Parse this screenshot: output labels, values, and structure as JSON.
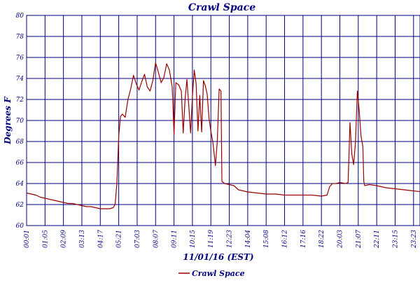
{
  "chart_data": {
    "type": "line",
    "title": "Crawl Space",
    "xlabel": "11/01/16 (EST)",
    "ylabel": "Degrees F",
    "ylim": [
      60,
      80
    ],
    "yticks": [
      60,
      62,
      64,
      66,
      68,
      70,
      72,
      74,
      76,
      78,
      80
    ],
    "xticks": [
      "00:01",
      "01:05",
      "02:09",
      "03:13",
      "04:17",
      "05:21",
      "07:03",
      "08:07",
      "09:11",
      "10:15",
      "11:19",
      "12:23",
      "14:04",
      "15:08",
      "16:12",
      "17:16",
      "18:22",
      "20:03",
      "21:07",
      "22:11",
      "23:15",
      "23:23"
    ],
    "grid": true,
    "legend_position": "bottom-left",
    "colors": {
      "series": "#990000",
      "grid": "#000080",
      "text": "#000080"
    },
    "series": [
      {
        "name": "Crawl Space",
        "points": [
          [
            0.0,
            63.1
          ],
          [
            0.25,
            63.0
          ],
          [
            0.5,
            62.9
          ],
          [
            0.75,
            62.7
          ],
          [
            1.0,
            62.6
          ],
          [
            1.25,
            62.5
          ],
          [
            1.5,
            62.4
          ],
          [
            1.75,
            62.3
          ],
          [
            2.0,
            62.2
          ],
          [
            2.25,
            62.1
          ],
          [
            2.5,
            62.1
          ],
          [
            2.75,
            62.0
          ],
          [
            3.0,
            61.9
          ],
          [
            3.25,
            61.8
          ],
          [
            3.5,
            61.8
          ],
          [
            3.75,
            61.7
          ],
          [
            4.0,
            61.6
          ],
          [
            4.25,
            61.6
          ],
          [
            4.5,
            61.6
          ],
          [
            4.7,
            61.7
          ],
          [
            4.8,
            62.0
          ],
          [
            4.9,
            64.0
          ],
          [
            5.0,
            68.5
          ],
          [
            5.1,
            70.4
          ],
          [
            5.2,
            70.6
          ],
          [
            5.35,
            70.3
          ],
          [
            5.5,
            72.0
          ],
          [
            5.65,
            73.0
          ],
          [
            5.8,
            74.3
          ],
          [
            5.95,
            73.5
          ],
          [
            6.1,
            72.9
          ],
          [
            6.25,
            73.7
          ],
          [
            6.4,
            74.4
          ],
          [
            6.55,
            73.2
          ],
          [
            6.7,
            72.8
          ],
          [
            6.85,
            73.8
          ],
          [
            7.0,
            75.5
          ],
          [
            7.15,
            74.6
          ],
          [
            7.3,
            73.6
          ],
          [
            7.45,
            74.1
          ],
          [
            7.6,
            75.4
          ],
          [
            7.75,
            74.8
          ],
          [
            7.9,
            73.2
          ],
          [
            8.0,
            68.7
          ],
          [
            8.1,
            73.6
          ],
          [
            8.25,
            73.4
          ],
          [
            8.4,
            72.8
          ],
          [
            8.5,
            68.8
          ],
          [
            8.6,
            72.0
          ],
          [
            8.7,
            73.9
          ],
          [
            8.8,
            71.5
          ],
          [
            8.9,
            68.8
          ],
          [
            9.0,
            72.3
          ],
          [
            9.1,
            74.8
          ],
          [
            9.2,
            73.5
          ],
          [
            9.3,
            69.0
          ],
          [
            9.4,
            72.4
          ],
          [
            9.5,
            68.9
          ],
          [
            9.6,
            73.8
          ],
          [
            9.7,
            73.3
          ],
          [
            9.8,
            72.5
          ],
          [
            9.9,
            70.2
          ],
          [
            10.0,
            69.0
          ],
          [
            10.1,
            68.0
          ],
          [
            10.2,
            66.5
          ],
          [
            10.25,
            65.7
          ],
          [
            10.35,
            68.0
          ],
          [
            10.45,
            73.0
          ],
          [
            10.55,
            72.8
          ],
          [
            10.6,
            64.2
          ],
          [
            10.75,
            64.0
          ],
          [
            11.0,
            63.9
          ],
          [
            11.25,
            63.8
          ],
          [
            11.5,
            63.4
          ],
          [
            12.0,
            63.2
          ],
          [
            12.5,
            63.1
          ],
          [
            13.0,
            63.0
          ],
          [
            13.5,
            63.0
          ],
          [
            14.0,
            62.9
          ],
          [
            14.5,
            62.9
          ],
          [
            15.0,
            62.9
          ],
          [
            15.5,
            62.9
          ],
          [
            16.0,
            62.8
          ],
          [
            16.3,
            62.9
          ],
          [
            16.45,
            63.7
          ],
          [
            16.6,
            64.0
          ],
          [
            16.8,
            64.0
          ],
          [
            17.0,
            64.1
          ],
          [
            17.3,
            64.0
          ],
          [
            17.45,
            64.1
          ],
          [
            17.55,
            69.8
          ],
          [
            17.65,
            66.8
          ],
          [
            17.75,
            65.8
          ],
          [
            17.85,
            68.0
          ],
          [
            17.95,
            72.8
          ],
          [
            18.05,
            71.0
          ],
          [
            18.15,
            68.5
          ],
          [
            18.25,
            67.5
          ],
          [
            18.3,
            64.2
          ],
          [
            18.35,
            63.8
          ],
          [
            18.6,
            63.9
          ],
          [
            19.0,
            63.8
          ],
          [
            19.5,
            63.6
          ],
          [
            20.0,
            63.5
          ],
          [
            20.5,
            63.4
          ],
          [
            21.0,
            63.3
          ],
          [
            21.5,
            63.2
          ],
          [
            22.0,
            63.1
          ],
          [
            22.5,
            63.0
          ],
          [
            23.0,
            63.0
          ],
          [
            23.4,
            63.0
          ]
        ]
      }
    ]
  }
}
